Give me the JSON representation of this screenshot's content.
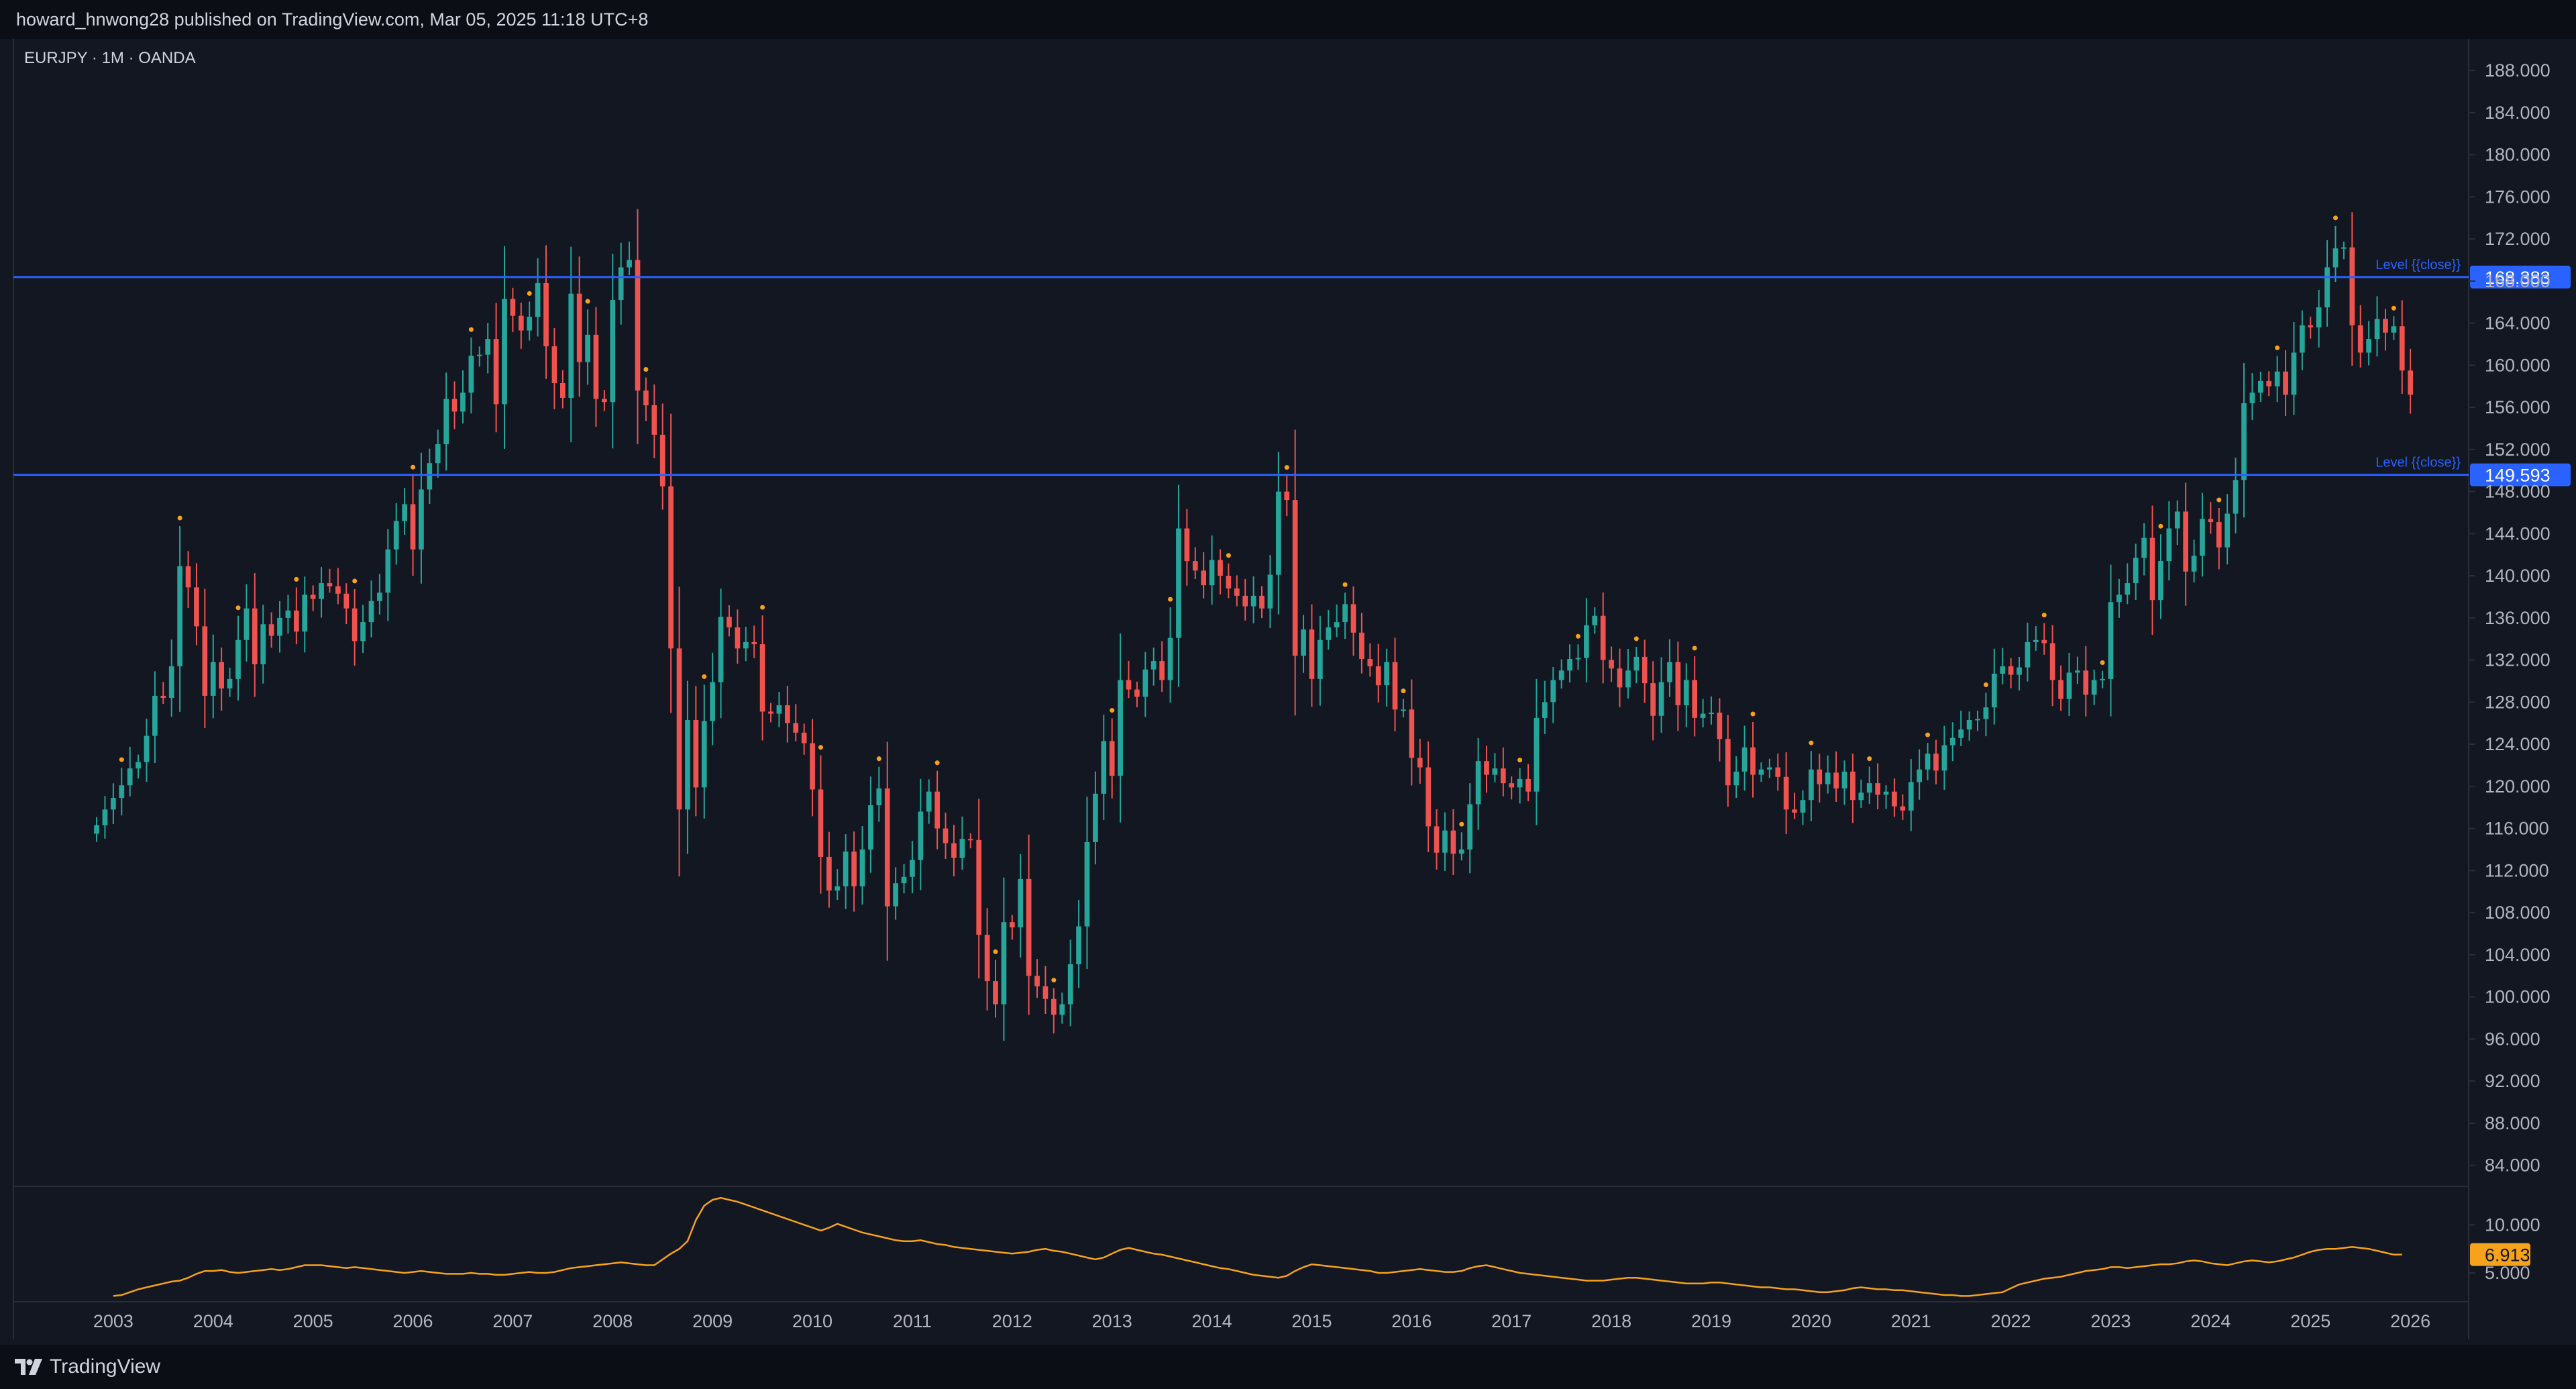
{
  "header": {
    "published_text": "howard_hnwong28 published on TradingView.com, Mar 05, 2025 11:18 UTC+8"
  },
  "footer": {
    "brand": "TradingView"
  },
  "colors": {
    "background": "#131722",
    "bar_bg": "#0c0e15",
    "grid": "#2a2e39",
    "up": "#26a69a",
    "down": "#ef5350",
    "level_line": "#2962ff",
    "indicator": "#f7a21b",
    "axis_text": "#b2b5be"
  },
  "chart_data": {
    "type": "candlestick",
    "symbol_label": "EURJPY · 1M · OANDA",
    "price_axis": {
      "ticks": [
        "188.000",
        "184.000",
        "180.000",
        "176.000",
        "172.000",
        "168.000",
        "164.000",
        "160.000",
        "156.000",
        "152.000",
        "148.000",
        "144.000",
        "140.000",
        "136.000",
        "132.000",
        "128.000",
        "124.000",
        "120.000",
        "116.000",
        "112.000",
        "108.000",
        "104.000",
        "100.000",
        "96.000",
        "92.000",
        "88.000",
        "84.000"
      ],
      "range": [
        82,
        191
      ]
    },
    "time_axis": {
      "ticks": [
        "2003",
        "2004",
        "2005",
        "2006",
        "2007",
        "2008",
        "2009",
        "2010",
        "2011",
        "2012",
        "2013",
        "2014",
        "2015",
        "2016",
        "2017",
        "2018",
        "2019",
        "2020",
        "2021",
        "2022",
        "2023",
        "2024",
        "2025",
        "2026"
      ],
      "start": "2002-01",
      "end": "2026-08"
    },
    "levels": [
      {
        "label": "Level {{close}}",
        "value": "168.383"
      },
      {
        "label": "Level {{close}}",
        "value": "149.593"
      }
    ],
    "closes": [
      116.3,
      117.8,
      118.9,
      120.1,
      121.7,
      122.3,
      124.8,
      128.6,
      128.4,
      131.4,
      140.9,
      138.9,
      135.2,
      128.6,
      131.8,
      129.3,
      130.2,
      133.9,
      136.9,
      131.6,
      135.4,
      134.3,
      136.0,
      136.7,
      134.7,
      138.2,
      137.8,
      139.3,
      139.0,
      138.3,
      136.9,
      133.8,
      135.6,
      137.6,
      138.4,
      142.5,
      145.2,
      146.8,
      142.5,
      148.2,
      150.7,
      152.5,
      156.8,
      155.6,
      157.4,
      160.9,
      161.0,
      162.5,
      156.3,
      166.3,
      164.7,
      163.3,
      164.6,
      167.8,
      161.8,
      158.3,
      156.9,
      166.8,
      160.3,
      162.9,
      156.8,
      156.5,
      166.2,
      169.3,
      170.0,
      157.6,
      156.2,
      153.4,
      148.5,
      133.1,
      117.8,
      126.3,
      119.9,
      126.2,
      129.9,
      136.1,
      135.1,
      133.1,
      133.7,
      133.5,
      127.1,
      126.9,
      127.7,
      126.0,
      125.1,
      124.1,
      119.7,
      113.3,
      110.1,
      110.5,
      113.8,
      110.5,
      114.0,
      118.2,
      119.8,
      108.6,
      110.8,
      111.4,
      113.0,
      117.6,
      119.5,
      116.0,
      114.6,
      113.2,
      115.0,
      114.9,
      105.9,
      101.5,
      99.3,
      107.1,
      106.6,
      111.2,
      102.0,
      101.0,
      99.8,
      98.3,
      99.3,
      103.1,
      106.7,
      114.7,
      119.3,
      124.3,
      121.0,
      130.1,
      129.2,
      128.5,
      131.1,
      131.9,
      130.1,
      134.1,
      144.5,
      141.4,
      140.5,
      139.1,
      141.5,
      140.0,
      138.8,
      138.1,
      137.1,
      138.1,
      136.9,
      140.1,
      148.0,
      147.2,
      132.4,
      134.9,
      130.2,
      133.9,
      135.1,
      135.6,
      137.3,
      134.6,
      132.1,
      131.4,
      129.6,
      131.8,
      127.3,
      127.3,
      122.7,
      121.8,
      116.2,
      113.7,
      115.8,
      113.6,
      114.0,
      118.3,
      122.4,
      121.1,
      121.7,
      120.3,
      119.9,
      120.7,
      119.5,
      126.5,
      128.0,
      130.1,
      131.0,
      132.1,
      132.2,
      135.3,
      136.2,
      132.0,
      131.2,
      129.4,
      131.0,
      132.3,
      129.8,
      126.7,
      129.9,
      131.8,
      127.7,
      130.1,
      126.5,
      126.9,
      127.0,
      124.5,
      120.1,
      121.4,
      123.7,
      121.1,
      121.6,
      121.8,
      120.9,
      117.8,
      117.5,
      118.7,
      121.6,
      120.2,
      121.3,
      119.8,
      121.4,
      118.7,
      119.4,
      120.3,
      119.2,
      119.5,
      118.1,
      117.7,
      120.4,
      121.6,
      123.1,
      121.5,
      123.9,
      124.6,
      125.4,
      126.3,
      126.4,
      127.5,
      130.7,
      131.4,
      130.6,
      131.3,
      133.7,
      133.9,
      133.6,
      130.1,
      128.3,
      130.8,
      131.0,
      128.7,
      130.1,
      130.2,
      137.5,
      138.2,
      139.3,
      141.7,
      143.6,
      137.7,
      141.4,
      144.5,
      146.1,
      140.4,
      141.9,
      145.4,
      145.1,
      142.7,
      145.9,
      149.1,
      156.4,
      157.4,
      158.5,
      158.0,
      159.4,
      157.2,
      161.2,
      163.8,
      163.6,
      165.5,
      169.3,
      171.1,
      171.2,
      163.8,
      161.2,
      162.5,
      164.4,
      163.1,
      163.7,
      159.5,
      157.2
    ],
    "indicator": {
      "value_label": "6.913",
      "ticks": [
        "10.000",
        "5.000"
      ],
      "range": [
        2.0,
        14.0
      ],
      "values": [
        2.6,
        2.7,
        3.0,
        3.3,
        3.5,
        3.7,
        3.9,
        4.1,
        4.2,
        4.5,
        4.9,
        5.2,
        5.2,
        5.3,
        5.1,
        5.0,
        5.1,
        5.2,
        5.3,
        5.4,
        5.3,
        5.4,
        5.6,
        5.8,
        5.8,
        5.8,
        5.7,
        5.6,
        5.5,
        5.6,
        5.5,
        5.4,
        5.3,
        5.2,
        5.1,
        5.0,
        5.1,
        5.2,
        5.1,
        5.0,
        4.9,
        4.9,
        4.9,
        5.0,
        4.9,
        4.9,
        4.8,
        4.8,
        4.9,
        5.0,
        5.1,
        5.0,
        5.0,
        5.1,
        5.3,
        5.5,
        5.6,
        5.7,
        5.8,
        5.9,
        6.0,
        6.1,
        6.0,
        5.9,
        5.8,
        5.8,
        6.4,
        7.0,
        7.5,
        8.3,
        10.5,
        12.0,
        12.6,
        12.8,
        12.6,
        12.4,
        12.1,
        11.8,
        11.5,
        11.2,
        10.9,
        10.6,
        10.3,
        10.0,
        9.7,
        9.4,
        9.7,
        10.1,
        9.8,
        9.5,
        9.2,
        9.0,
        8.8,
        8.6,
        8.4,
        8.3,
        8.3,
        8.4,
        8.2,
        8.0,
        7.9,
        7.7,
        7.6,
        7.5,
        7.4,
        7.3,
        7.2,
        7.1,
        7.0,
        7.1,
        7.2,
        7.4,
        7.5,
        7.3,
        7.2,
        7.0,
        6.8,
        6.6,
        6.4,
        6.6,
        7.0,
        7.4,
        7.6,
        7.4,
        7.2,
        7.0,
        6.9,
        6.7,
        6.5,
        6.3,
        6.1,
        5.9,
        5.7,
        5.5,
        5.4,
        5.2,
        5.0,
        4.8,
        4.7,
        4.6,
        4.5,
        4.7,
        5.2,
        5.6,
        5.9,
        5.8,
        5.7,
        5.6,
        5.5,
        5.4,
        5.3,
        5.2,
        5.0,
        5.0,
        5.1,
        5.2,
        5.3,
        5.4,
        5.3,
        5.2,
        5.1,
        5.1,
        5.2,
        5.5,
        5.7,
        5.8,
        5.6,
        5.4,
        5.2,
        5.0,
        4.9,
        4.8,
        4.7,
        4.6,
        4.5,
        4.4,
        4.3,
        4.2,
        4.2,
        4.2,
        4.3,
        4.4,
        4.5,
        4.5,
        4.4,
        4.3,
        4.2,
        4.1,
        4.0,
        3.9,
        3.9,
        3.9,
        4.0,
        4.0,
        3.9,
        3.8,
        3.7,
        3.6,
        3.5,
        3.5,
        3.4,
        3.3,
        3.3,
        3.2,
        3.1,
        3.0,
        3.0,
        3.1,
        3.2,
        3.4,
        3.5,
        3.4,
        3.3,
        3.3,
        3.2,
        3.2,
        3.1,
        3.0,
        2.9,
        2.8,
        2.7,
        2.7,
        2.6,
        2.6,
        2.7,
        2.8,
        2.9,
        3.0,
        3.4,
        3.8,
        4.0,
        4.2,
        4.4,
        4.5,
        4.6,
        4.8,
        5.0,
        5.2,
        5.3,
        5.4,
        5.6,
        5.6,
        5.5,
        5.6,
        5.7,
        5.8,
        5.9,
        5.9,
        6.0,
        6.2,
        6.3,
        6.2,
        6.0,
        5.9,
        5.8,
        6.0,
        6.2,
        6.3,
        6.2,
        6.1,
        6.2,
        6.4,
        6.6,
        6.9,
        7.2,
        7.4,
        7.5,
        7.5,
        7.6,
        7.7,
        7.6,
        7.5,
        7.3,
        7.1,
        6.9,
        6.913
      ]
    }
  }
}
